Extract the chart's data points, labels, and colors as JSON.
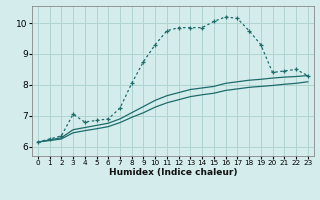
{
  "xlabel": "Humidex (Indice chaleur)",
  "bg_color": "#d4edec",
  "grid_color": "#afd4d0",
  "line_color": "#1e6b6b",
  "xlim": [
    -0.5,
    23.5
  ],
  "ylim": [
    5.7,
    10.55
  ],
  "xticks": [
    0,
    1,
    2,
    3,
    4,
    5,
    6,
    7,
    8,
    9,
    10,
    11,
    12,
    13,
    14,
    15,
    16,
    17,
    18,
    19,
    20,
    21,
    22,
    23
  ],
  "yticks": [
    6,
    7,
    8,
    9,
    10
  ],
  "curve_x": [
    0,
    1,
    2,
    3,
    4,
    5,
    6,
    7,
    8,
    9,
    10,
    11,
    12,
    13,
    14,
    15,
    16,
    17,
    18,
    19,
    20,
    21,
    22,
    23
  ],
  "curve_y": [
    6.15,
    6.25,
    6.35,
    7.05,
    6.8,
    6.85,
    6.9,
    7.25,
    8.05,
    8.75,
    9.3,
    9.75,
    9.85,
    9.85,
    9.85,
    10.05,
    10.2,
    10.15,
    9.75,
    9.3,
    8.4,
    8.45,
    8.5,
    8.3
  ],
  "line2_x": [
    0,
    1,
    2,
    3,
    4,
    5,
    6,
    7,
    8,
    9,
    10,
    11,
    12,
    13,
    14,
    15,
    16,
    17,
    18,
    19,
    20,
    21,
    22,
    23
  ],
  "line2_y": [
    6.15,
    6.22,
    6.29,
    6.55,
    6.62,
    6.69,
    6.76,
    6.9,
    7.1,
    7.3,
    7.5,
    7.65,
    7.75,
    7.85,
    7.9,
    7.95,
    8.05,
    8.1,
    8.15,
    8.18,
    8.22,
    8.25,
    8.27,
    8.3
  ],
  "line3_x": [
    0,
    1,
    2,
    3,
    4,
    5,
    6,
    7,
    8,
    9,
    10,
    11,
    12,
    13,
    14,
    15,
    16,
    17,
    18,
    19,
    20,
    21,
    22,
    23
  ],
  "line3_y": [
    6.15,
    6.2,
    6.25,
    6.45,
    6.52,
    6.58,
    6.65,
    6.78,
    6.95,
    7.1,
    7.28,
    7.42,
    7.52,
    7.62,
    7.68,
    7.73,
    7.82,
    7.87,
    7.92,
    7.95,
    7.98,
    8.02,
    8.05,
    8.1
  ]
}
